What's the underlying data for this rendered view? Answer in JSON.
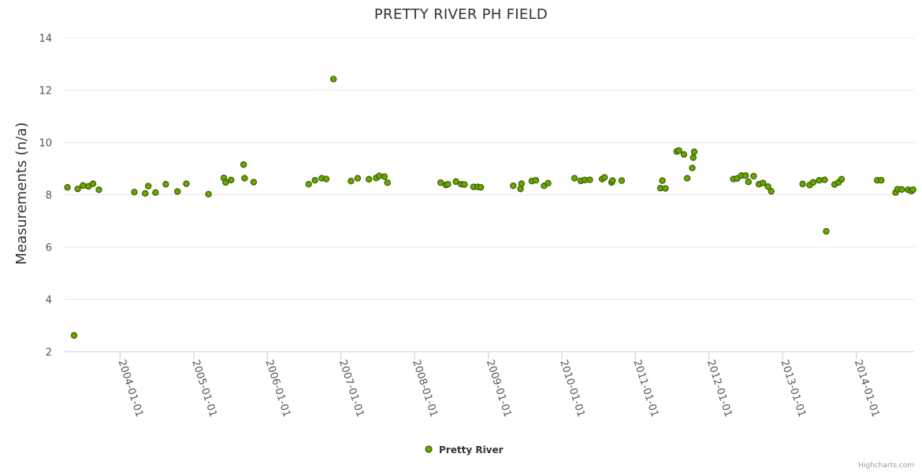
{
  "chart_data": {
    "type": "scatter",
    "title": "PRETTY RIVER PH FIELD",
    "xlabel": "",
    "ylabel": "Measurements (n/a)",
    "ylim": [
      2,
      14
    ],
    "yticks": [
      2,
      4,
      6,
      8,
      10,
      12,
      14
    ],
    "xlim": [
      "2003-04-01",
      "2014-10-15"
    ],
    "xticks": [
      "2004-01-01",
      "2005-01-01",
      "2006-01-01",
      "2007-01-01",
      "2008-01-01",
      "2009-01-01",
      "2010-01-01",
      "2011-01-01",
      "2012-01-01",
      "2013-01-01",
      "2014-01-01"
    ],
    "grid": true,
    "legend": "bottom-center",
    "credits": "Highcharts.com",
    "series": [
      {
        "name": "Pretty River",
        "color": "#6aa700",
        "points": [
          [
            "2003-04-15",
            8.28
          ],
          [
            "2003-05-18",
            2.62
          ],
          [
            "2003-06-05",
            8.22
          ],
          [
            "2003-07-01",
            8.35
          ],
          [
            "2003-07-28",
            8.32
          ],
          [
            "2003-08-20",
            8.42
          ],
          [
            "2003-09-18",
            8.19
          ],
          [
            "2004-03-12",
            8.1
          ],
          [
            "2004-05-05",
            8.05
          ],
          [
            "2004-05-20",
            8.33
          ],
          [
            "2004-06-25",
            8.08
          ],
          [
            "2004-08-15",
            8.4
          ],
          [
            "2004-10-12",
            8.12
          ],
          [
            "2004-11-25",
            8.42
          ],
          [
            "2005-03-15",
            8.02
          ],
          [
            "2005-05-30",
            8.64
          ],
          [
            "2005-06-08",
            8.47
          ],
          [
            "2005-07-05",
            8.56
          ],
          [
            "2005-09-05",
            9.15
          ],
          [
            "2005-09-10",
            8.63
          ],
          [
            "2005-10-25",
            8.48
          ],
          [
            "2006-07-25",
            8.4
          ],
          [
            "2006-08-25",
            8.55
          ],
          [
            "2006-09-28",
            8.63
          ],
          [
            "2006-10-20",
            8.6
          ],
          [
            "2006-11-25",
            12.42
          ],
          [
            "2007-02-20",
            8.52
          ],
          [
            "2007-03-25",
            8.63
          ],
          [
            "2007-05-20",
            8.59
          ],
          [
            "2007-06-25",
            8.64
          ],
          [
            "2007-07-10",
            8.72
          ],
          [
            "2007-08-05",
            8.69
          ],
          [
            "2007-08-20",
            8.46
          ],
          [
            "2008-05-10",
            8.46
          ],
          [
            "2008-06-05",
            8.37
          ],
          [
            "2008-06-15",
            8.4
          ],
          [
            "2008-07-25",
            8.5
          ],
          [
            "2008-08-20",
            8.4
          ],
          [
            "2008-09-05",
            8.39
          ],
          [
            "2008-10-20",
            8.3
          ],
          [
            "2008-11-10",
            8.3
          ],
          [
            "2008-11-25",
            8.28
          ],
          [
            "2009-05-05",
            8.34
          ],
          [
            "2009-06-10",
            8.22
          ],
          [
            "2009-06-15",
            8.42
          ],
          [
            "2009-08-05",
            8.52
          ],
          [
            "2009-08-25",
            8.55
          ],
          [
            "2009-10-05",
            8.34
          ],
          [
            "2009-10-25",
            8.44
          ],
          [
            "2010-03-05",
            8.63
          ],
          [
            "2010-04-05",
            8.53
          ],
          [
            "2010-04-25",
            8.56
          ],
          [
            "2010-05-20",
            8.57
          ],
          [
            "2010-07-20",
            8.6
          ],
          [
            "2010-08-01",
            8.66
          ],
          [
            "2010-09-05",
            8.47
          ],
          [
            "2010-09-10",
            8.54
          ],
          [
            "2010-10-25",
            8.54
          ],
          [
            "2011-05-05",
            8.25
          ],
          [
            "2011-05-15",
            8.54
          ],
          [
            "2011-05-30",
            8.24
          ],
          [
            "2011-07-25",
            9.65
          ],
          [
            "2011-08-05",
            9.69
          ],
          [
            "2011-08-30",
            9.54
          ],
          [
            "2011-09-15",
            8.63
          ],
          [
            "2011-10-10",
            9.02
          ],
          [
            "2011-10-15",
            9.42
          ],
          [
            "2011-10-20",
            9.64
          ],
          [
            "2012-05-01",
            8.6
          ],
          [
            "2012-05-20",
            8.62
          ],
          [
            "2012-06-10",
            8.73
          ],
          [
            "2012-07-01",
            8.73
          ],
          [
            "2012-07-15",
            8.49
          ],
          [
            "2012-08-10",
            8.71
          ],
          [
            "2012-09-05",
            8.4
          ],
          [
            "2012-09-25",
            8.45
          ],
          [
            "2012-10-20",
            8.31
          ],
          [
            "2012-11-05",
            8.13
          ],
          [
            "2013-04-10",
            8.41
          ],
          [
            "2013-05-15",
            8.37
          ],
          [
            "2013-06-01",
            8.47
          ],
          [
            "2013-07-01",
            8.55
          ],
          [
            "2013-07-28",
            8.57
          ],
          [
            "2013-08-05",
            6.6
          ],
          [
            "2013-09-15",
            8.39
          ],
          [
            "2013-10-05",
            8.47
          ],
          [
            "2013-10-20",
            8.59
          ],
          [
            "2014-04-15",
            8.55
          ],
          [
            "2014-05-05",
            8.55
          ],
          [
            "2014-07-15",
            8.08
          ],
          [
            "2014-07-25",
            8.21
          ],
          [
            "2014-08-15",
            8.2
          ],
          [
            "2014-09-15",
            8.19
          ],
          [
            "2014-10-01",
            8.14
          ],
          [
            "2014-10-10",
            8.19
          ]
        ]
      }
    ]
  }
}
